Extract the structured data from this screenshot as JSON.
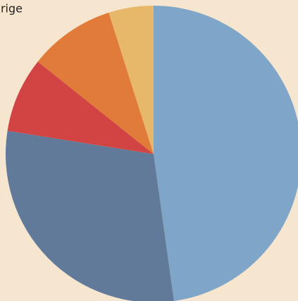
{
  "chart_data": {
    "type": "pie",
    "categories": [
      null,
      null,
      null,
      null,
      "rige"
    ],
    "values": [
      47.8,
      29.7,
      8.2,
      9.4,
      4.9
    ],
    "colors": [
      "#7fa6c8",
      "#617a9a",
      "#d24444",
      "#e07b39",
      "#e8b86a"
    ]
  }
}
